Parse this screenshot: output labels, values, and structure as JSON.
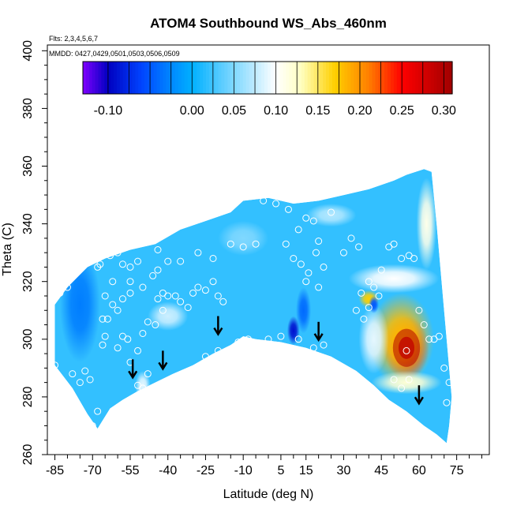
{
  "chart_data": {
    "type": "heatmap",
    "title": "ATOM4 Southbound WS_Abs_460nm",
    "subtitle_flights": "Flts: 2,3,4,5,6,7",
    "subtitle_dates": "MMDD: 0427,0429,0501,0503,0506,0509",
    "xlabel": "Latitude (deg N)",
    "ylabel": "Theta (C)",
    "xlim": [
      -88,
      88
    ],
    "ylim": [
      260,
      402
    ],
    "x_ticks": [
      -85,
      -70,
      -55,
      -40,
      -25,
      -10,
      5,
      15,
      30,
      45,
      60,
      75
    ],
    "y_ticks": [
      260,
      280,
      300,
      320,
      340,
      360,
      380,
      400
    ],
    "colorbar": {
      "min": -0.13,
      "max": 0.31,
      "ticks": [
        -0.1,
        0.0,
        0.05,
        0.1,
        0.15,
        0.2,
        0.25,
        0.3
      ],
      "tick_labels": [
        "-0.10",
        "0.00",
        "0.05",
        "0.10",
        "0.15",
        "0.20",
        "0.25",
        "0.30"
      ],
      "colors": [
        "#8000ff",
        "#0000c0",
        "#0044ff",
        "#0090ff",
        "#00b0ff",
        "#66d0ff",
        "#ffffff",
        "#ffffc0",
        "#ffd000",
        "#ff8000",
        "#ff0000",
        "#a00000"
      ],
      "color_stops": [
        -0.13,
        -0.1,
        -0.06,
        -0.02,
        0.0,
        0.04,
        0.1,
        0.13,
        0.17,
        0.21,
        0.25,
        0.31
      ]
    },
    "coverage": {
      "upper_boundary": [
        [
          -85,
          312
        ],
        [
          -80,
          318
        ],
        [
          -72,
          325
        ],
        [
          -65,
          328
        ],
        [
          -55,
          331
        ],
        [
          -45,
          333
        ],
        [
          -35,
          338
        ],
        [
          -25,
          341
        ],
        [
          -15,
          344
        ],
        [
          -10,
          348
        ],
        [
          0,
          349
        ],
        [
          10,
          347
        ],
        [
          20,
          348
        ],
        [
          30,
          350
        ],
        [
          40,
          352
        ],
        [
          50,
          355
        ],
        [
          55,
          357
        ],
        [
          62,
          359
        ],
        [
          65,
          358
        ]
      ],
      "lower_boundary": [
        [
          -85,
          291
        ],
        [
          -78,
          283
        ],
        [
          -72,
          274
        ],
        [
          -68,
          269
        ],
        [
          -63,
          276
        ],
        [
          -58,
          279
        ],
        [
          -52,
          282
        ],
        [
          -45,
          285
        ],
        [
          -38,
          288
        ],
        [
          -30,
          291
        ],
        [
          -22,
          295
        ],
        [
          -15,
          298
        ],
        [
          -10,
          301
        ],
        [
          -5,
          300
        ],
        [
          5,
          299
        ],
        [
          15,
          297
        ],
        [
          25,
          294
        ],
        [
          35,
          289
        ],
        [
          42,
          284
        ],
        [
          48,
          279
        ],
        [
          55,
          275
        ],
        [
          62,
          270
        ],
        [
          67,
          267
        ],
        [
          71,
          264
        ]
      ],
      "right_edge": [
        [
          65,
          358
        ],
        [
          67,
          340
        ],
        [
          69,
          320
        ],
        [
          71,
          300
        ],
        [
          72,
          290
        ],
        [
          73,
          280
        ],
        [
          72,
          270
        ],
        [
          71,
          264
        ]
      ]
    },
    "background_value": 0.02,
    "features": [
      {
        "lat": 55,
        "theta": 297,
        "value": 0.26,
        "rx": 9,
        "ry": 11
      },
      {
        "lat": 53,
        "theta": 300,
        "value": 0.18,
        "rx": 13,
        "ry": 16
      },
      {
        "lat": 40,
        "theta": 314,
        "value": 0.17,
        "rx": 4,
        "ry": 3
      },
      {
        "lat": 55,
        "theta": 285,
        "value": 0.12,
        "rx": 14,
        "ry": 4
      },
      {
        "lat": 50,
        "theta": 321,
        "value": 0.1,
        "rx": 18,
        "ry": 5
      },
      {
        "lat": 63,
        "theta": 340,
        "value": 0.11,
        "rx": 4,
        "ry": 16
      },
      {
        "lat": 42,
        "theta": 300,
        "value": 0.09,
        "rx": 6,
        "ry": 12
      },
      {
        "lat": 10,
        "theta": 303,
        "value": -0.09,
        "rx": 2.5,
        "ry": 5
      },
      {
        "lat": 14,
        "theta": 310,
        "value": -0.04,
        "rx": 3,
        "ry": 8
      },
      {
        "lat": 42,
        "theta": 312,
        "value": -0.05,
        "rx": 2,
        "ry": 3
      },
      {
        "lat": -40,
        "theta": 308,
        "value": 0.08,
        "rx": 8,
        "ry": 5
      },
      {
        "lat": -50,
        "theta": 284,
        "value": 0.09,
        "rx": 3,
        "ry": 5
      },
      {
        "lat": -75,
        "theta": 312,
        "value": -0.03,
        "rx": 8,
        "ry": 20
      },
      {
        "lat": 25,
        "theta": 343,
        "value": 0.07,
        "rx": 10,
        "ry": 4
      },
      {
        "lat": -10,
        "theta": 335,
        "value": 0.05,
        "rx": 10,
        "ry": 6
      }
    ],
    "observations": [
      [
        -85,
        291
      ],
      [
        -83,
        316
      ],
      [
        -80,
        318
      ],
      [
        -78,
        288
      ],
      [
        -75,
        285
      ],
      [
        -73,
        289
      ],
      [
        -71,
        286
      ],
      [
        -70,
        270
      ],
      [
        -68,
        275
      ],
      [
        -66,
        298
      ],
      [
        -65,
        301
      ],
      [
        -68,
        325
      ],
      [
        -67,
        326
      ],
      [
        -69,
        331
      ],
      [
        -63,
        329
      ],
      [
        -60,
        330
      ],
      [
        -62,
        320
      ],
      [
        -65,
        315
      ],
      [
        -66,
        307
      ],
      [
        -64,
        307
      ],
      [
        -62,
        312
      ],
      [
        -60,
        310
      ],
      [
        -58,
        314
      ],
      [
        -55,
        316
      ],
      [
        -55,
        320
      ],
      [
        -58,
        326
      ],
      [
        -55,
        325
      ],
      [
        -52,
        327
      ],
      [
        -50,
        318
      ],
      [
        -48,
        306
      ],
      [
        -45,
        305
      ],
      [
        -44,
        314
      ],
      [
        -42,
        316
      ],
      [
        -40,
        315
      ],
      [
        -37,
        315
      ],
      [
        -35,
        313
      ],
      [
        -32,
        311
      ],
      [
        -30,
        316
      ],
      [
        -28,
        318
      ],
      [
        -25,
        317
      ],
      [
        -22,
        320
      ],
      [
        -20,
        315
      ],
      [
        -18,
        313
      ],
      [
        -58,
        301
      ],
      [
        -56,
        300
      ],
      [
        -60,
        297
      ],
      [
        -55,
        292
      ],
      [
        -52,
        296
      ],
      [
        -50,
        302
      ],
      [
        -48,
        288
      ],
      [
        -45,
        280
      ],
      [
        -42,
        283
      ],
      [
        -38,
        286
      ],
      [
        -35,
        287
      ],
      [
        -30,
        289
      ],
      [
        -25,
        294
      ],
      [
        -20,
        296
      ],
      [
        -15,
        292
      ],
      [
        -12,
        299
      ],
      [
        -8,
        300
      ],
      [
        0,
        300
      ],
      [
        5,
        301
      ],
      [
        12,
        300
      ],
      [
        18,
        297
      ],
      [
        22,
        298
      ],
      [
        -46,
        322
      ],
      [
        -44,
        324
      ],
      [
        -42,
        310
      ],
      [
        -47,
        336
      ],
      [
        -44,
        331
      ],
      [
        -40,
        327
      ],
      [
        -35,
        327
      ],
      [
        -28,
        330
      ],
      [
        -22,
        328
      ],
      [
        -15,
        333
      ],
      [
        -10,
        332
      ],
      [
        -5,
        333
      ],
      [
        -2,
        348
      ],
      [
        3,
        347
      ],
      [
        8,
        345
      ],
      [
        12,
        338
      ],
      [
        15,
        342
      ],
      [
        18,
        341
      ],
      [
        20,
        334
      ],
      [
        25,
        344
      ],
      [
        10,
        328
      ],
      [
        7,
        333
      ],
      [
        13,
        326
      ],
      [
        16,
        323
      ],
      [
        20,
        318
      ],
      [
        22,
        325
      ],
      [
        15,
        320
      ],
      [
        19,
        330
      ],
      [
        30,
        330
      ],
      [
        33,
        335
      ],
      [
        36,
        332
      ],
      [
        40,
        320
      ],
      [
        42,
        318
      ],
      [
        45,
        324
      ],
      [
        48,
        332
      ],
      [
        50,
        333
      ],
      [
        53,
        328
      ],
      [
        56,
        329
      ],
      [
        58,
        328
      ],
      [
        44,
        315
      ],
      [
        40,
        311
      ],
      [
        38,
        307
      ],
      [
        35,
        310
      ],
      [
        37,
        316
      ],
      [
        60,
        310
      ],
      [
        62,
        305
      ],
      [
        64,
        300
      ],
      [
        66,
        300
      ],
      [
        68,
        301
      ],
      [
        70,
        290
      ],
      [
        72,
        285
      ],
      [
        71,
        278
      ],
      [
        55,
        296
      ],
      [
        50,
        286
      ],
      [
        53,
        283
      ],
      [
        56,
        286
      ],
      [
        45,
        279
      ],
      [
        -52,
        284
      ],
      [
        -50,
        283
      ],
      [
        -48,
        282
      ]
    ],
    "arrows": [
      {
        "lat": -54,
        "theta": 287
      },
      {
        "lat": -42,
        "theta": 290
      },
      {
        "lat": -20,
        "theta": 302
      },
      {
        "lat": 20,
        "theta": 300
      },
      {
        "lat": 60,
        "theta": 278
      }
    ]
  }
}
